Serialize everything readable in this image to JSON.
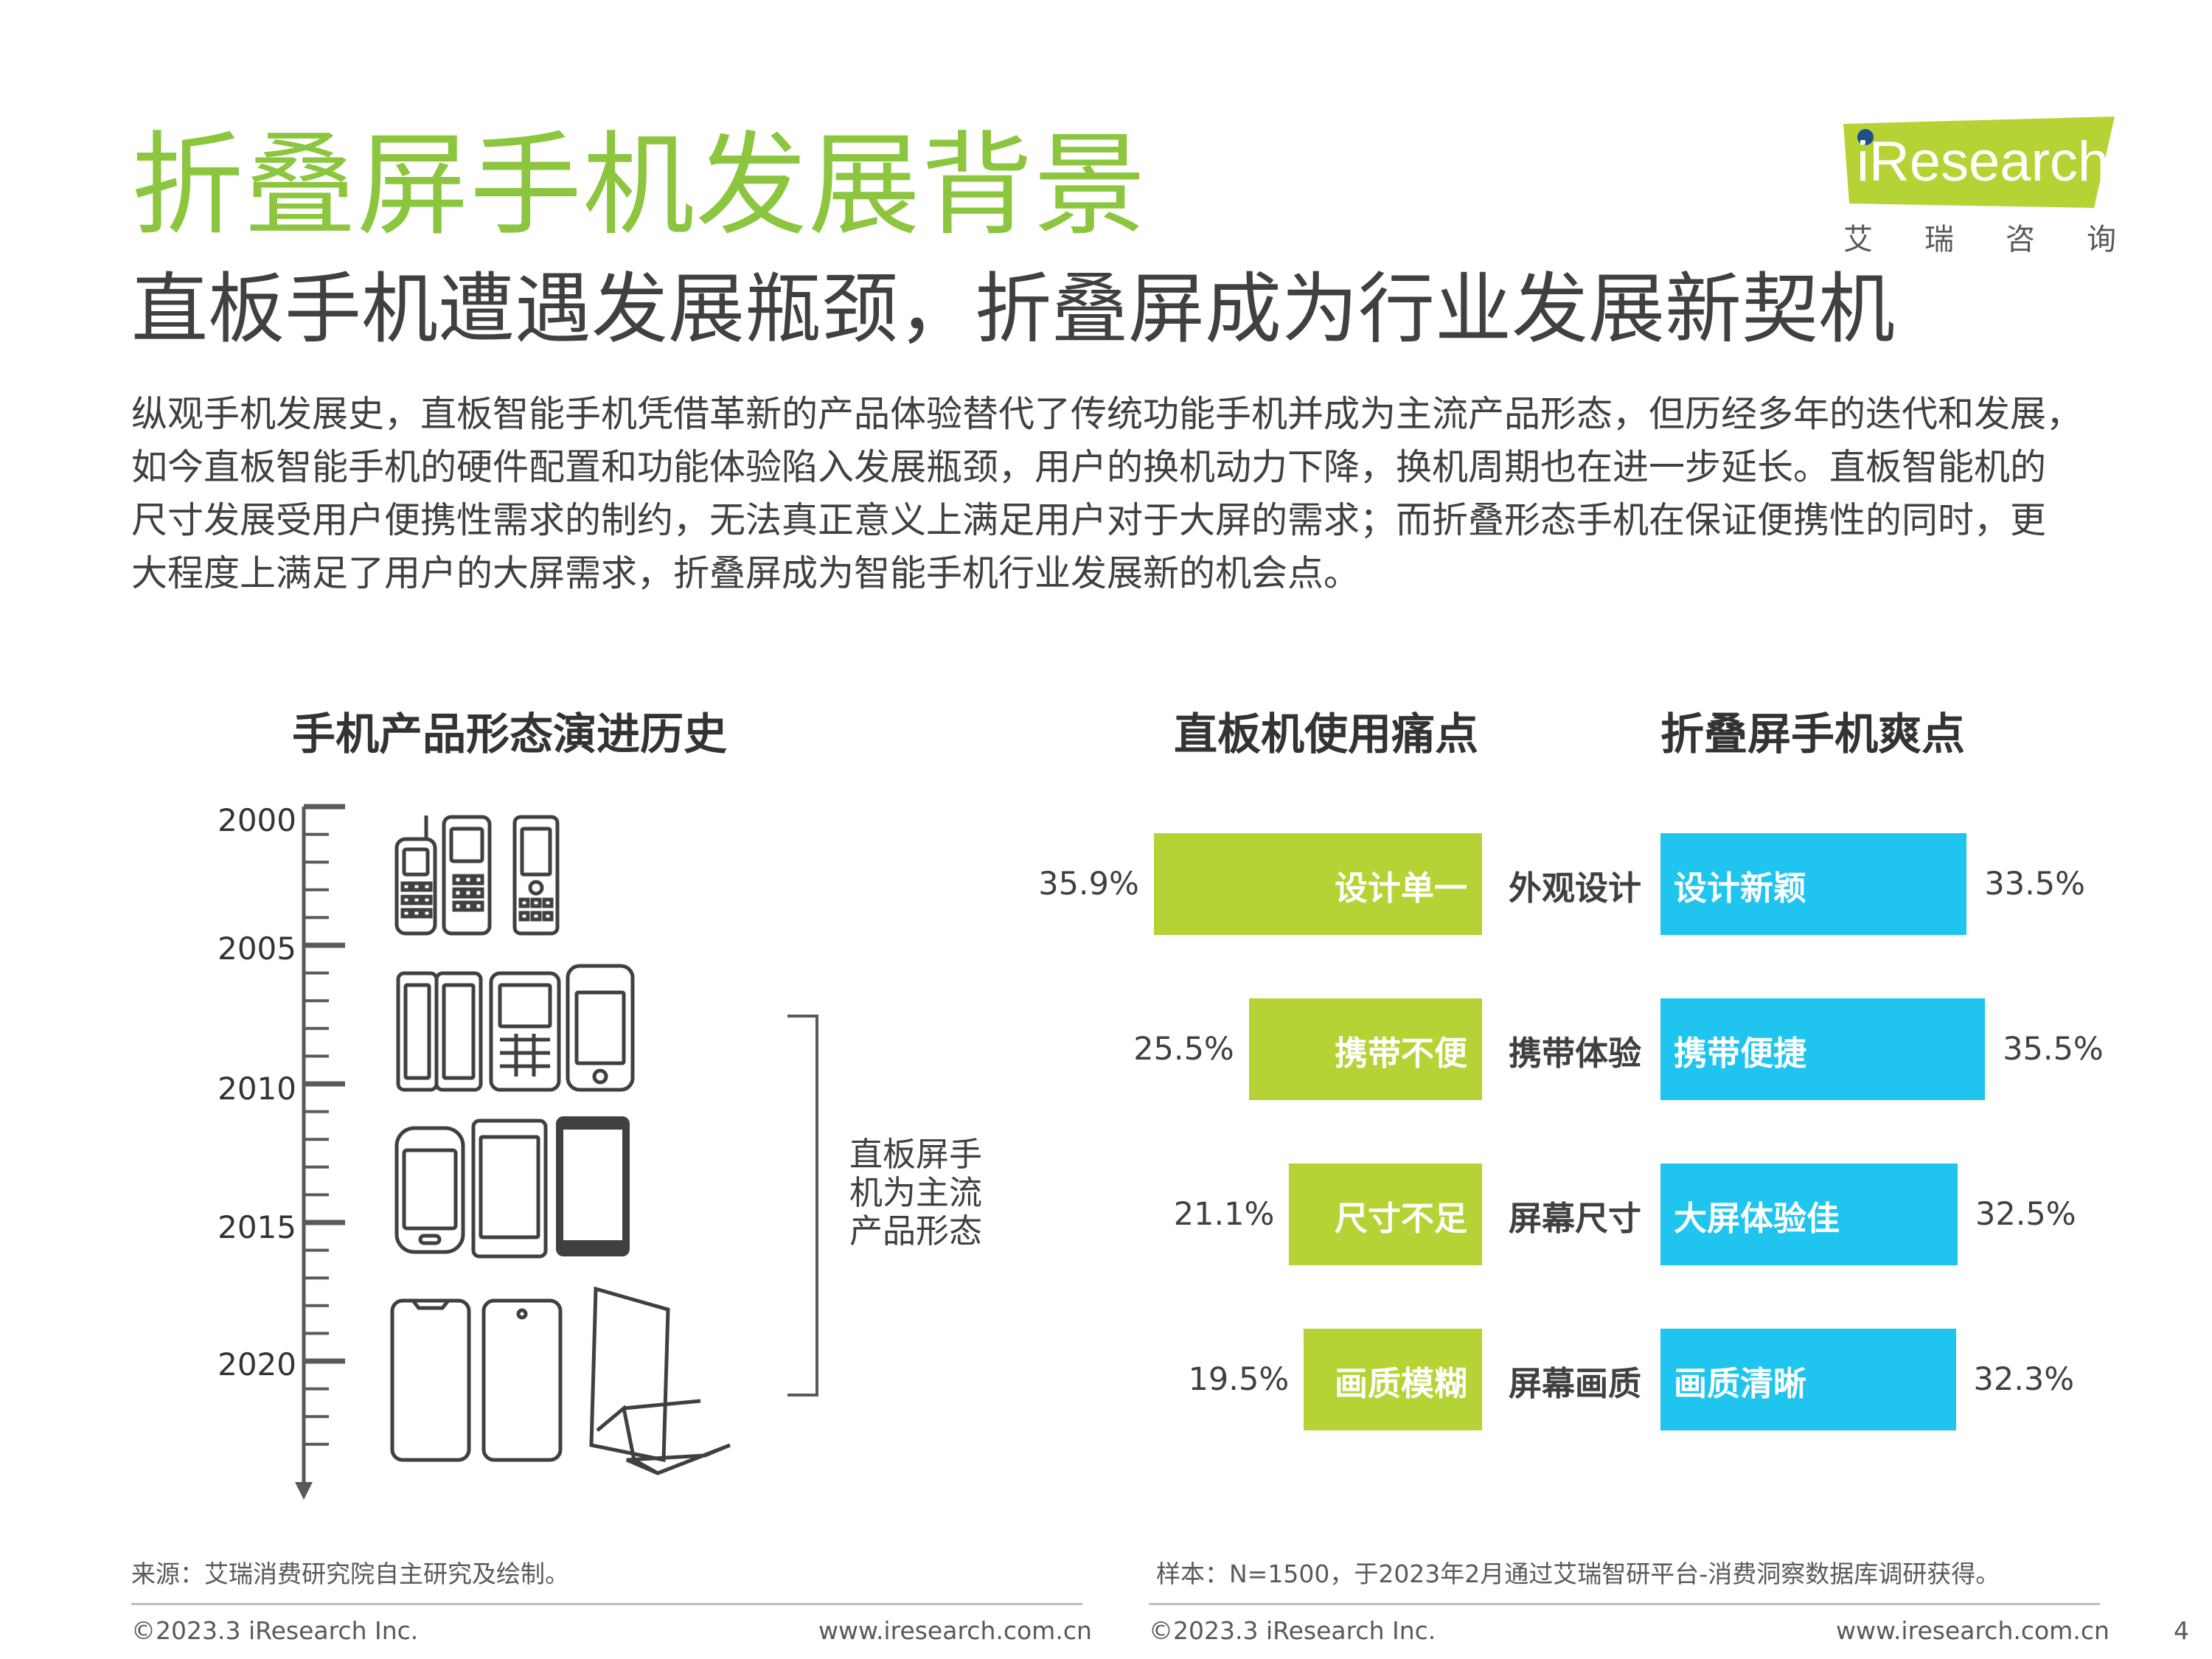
{
  "header": {
    "title": "折叠屏手机发展背景",
    "subtitle": "直板手机遭遇发展瓶颈，折叠屏成为行业发展新契机",
    "intro_lines": [
      "纵观手机发展史，直板智能手机凭借革新的产品体验替代了传统功能手机并成为主流产品形态，但历经多年的迭代和发展，",
      "如今直板智能手机的硬件配置和功能体验陷入发展瓶颈，用户的换机动力下降，换机周期也在进一步延长。直板智能机的",
      "尺寸发展受用户便携性需求的制约，无法真正意义上满足用户对于大屏的需求；而折叠形态手机在保证便携性的同时，更",
      "大程度上满足了用户的大屏需求，折叠屏成为智能手机行业发展新的机会点。"
    ]
  },
  "logo": {
    "text": "iResearch",
    "cn_chars": [
      "艾",
      "瑞",
      "咨",
      "询"
    ],
    "accent": "#b5d334"
  },
  "timeline": {
    "title": "手机产品形态演进历史",
    "years": [
      "2000",
      "2005",
      "2010",
      "2015",
      "2020"
    ],
    "bracket_lines": [
      "直板屏手",
      "机为主流",
      "产品形态"
    ]
  },
  "chart_data": {
    "type": "bar",
    "categories": [
      "外观设计",
      "携带体验",
      "屏幕尺寸",
      "屏幕画质"
    ],
    "pain": {
      "title": "直板机使用痛点",
      "labels": [
        "设计单一",
        "携带不便",
        "尺寸不足",
        "画质模糊"
      ],
      "values": [
        35.9,
        25.5,
        21.1,
        19.5
      ],
      "color": "#b5d334"
    },
    "gain": {
      "title": "折叠屏手机爽点",
      "labels": [
        "设计新颖",
        "携带便捷",
        "大屏体验佳",
        "画质清晰"
      ],
      "values": [
        33.5,
        35.5,
        32.5,
        32.3
      ],
      "color": "#1fc4ef"
    },
    "unit": "%"
  },
  "footer": {
    "source_note": "来源：艾瑞消费研究院自主研究及绘制。",
    "sample_note": "样本：N=1500，于2023年2月通过艾瑞智研平台-消费洞察数据库调研获得。",
    "copyright_left": "©2023.3 iResearch Inc.",
    "url_left": "www.iresearch.com.cn",
    "copyright_right": "©2023.3 iResearch Inc.",
    "url_right": "www.iresearch.com.cn",
    "page_number": "4"
  }
}
